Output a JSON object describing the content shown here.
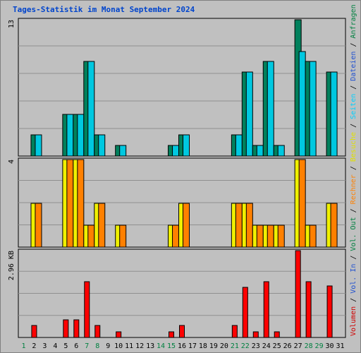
{
  "title": "Tages-Statistik im Monat September 2024",
  "colors": {
    "background": "#c0c0c0",
    "grid": "#909090",
    "border": "#000000",
    "anfragen": "#00805c",
    "dateien": "#00c8e0",
    "seiten": "#00e0ff",
    "besuche": "#f0f000",
    "rechner": "#ff8000",
    "volumen": "#ff0000",
    "title": "#0044cc",
    "weekday": "#000000",
    "weekend": "#008040"
  },
  "right_legend": [
    {
      "text": "Volumen",
      "color": "#d00000"
    },
    {
      "text": " / ",
      "color": "#000000"
    },
    {
      "text": "Vol. In",
      "color": "#2050d0"
    },
    {
      "text": " / ",
      "color": "#000000"
    },
    {
      "text": "Vol. Out",
      "color": "#008040"
    },
    {
      "text": " / ",
      "color": "#000000"
    },
    {
      "text": "Rechner",
      "color": "#ff8000"
    },
    {
      "text": " / ",
      "color": "#000000"
    },
    {
      "text": "Besuche",
      "color": "#e0e000"
    },
    {
      "text": " / ",
      "color": "#000000"
    },
    {
      "text": "Seiten",
      "color": "#00d0ff"
    },
    {
      "text": " / ",
      "color": "#000000"
    },
    {
      "text": "Dateien",
      "color": "#2050d0"
    },
    {
      "text": " / ",
      "color": "#000000"
    },
    {
      "text": "Anfragen",
      "color": "#008040"
    }
  ],
  "chart_data": [
    {
      "type": "bar",
      "panel": "hits",
      "ymax_label": "13",
      "ymax": 13,
      "categories": [
        "1",
        "2",
        "3",
        "4",
        "5",
        "6",
        "7",
        "8",
        "9",
        "10",
        "11",
        "12",
        "13",
        "14",
        "15",
        "16",
        "17",
        "18",
        "19",
        "20",
        "21",
        "22",
        "23",
        "24",
        "25",
        "26",
        "27",
        "28",
        "29",
        "30",
        "31"
      ],
      "series": [
        {
          "name": "Anfragen",
          "values": [
            0,
            2,
            0,
            0,
            4,
            4,
            9,
            2,
            0,
            1,
            0,
            0,
            0,
            0,
            1,
            2,
            0,
            0,
            0,
            0,
            2,
            8,
            1,
            9,
            1,
            0,
            13,
            9,
            0,
            8,
            0
          ]
        },
        {
          "name": "Dateien",
          "values": [
            0,
            2,
            0,
            0,
            4,
            4,
            9,
            2,
            0,
            1,
            0,
            0,
            0,
            0,
            1,
            2,
            0,
            0,
            0,
            0,
            2,
            8,
            1,
            9,
            1,
            0,
            10,
            9,
            0,
            8,
            0
          ]
        }
      ]
    },
    {
      "type": "bar",
      "panel": "visits",
      "ymax_label": "4",
      "ymax": 4,
      "categories": [
        "1",
        "2",
        "3",
        "4",
        "5",
        "6",
        "7",
        "8",
        "9",
        "10",
        "11",
        "12",
        "13",
        "14",
        "15",
        "16",
        "17",
        "18",
        "19",
        "20",
        "21",
        "22",
        "23",
        "24",
        "25",
        "26",
        "27",
        "28",
        "29",
        "30",
        "31"
      ],
      "series": [
        {
          "name": "Besuche",
          "values": [
            0,
            2,
            0,
            0,
            4,
            4,
            1,
            2,
            0,
            1,
            0,
            0,
            0,
            0,
            1,
            2,
            0,
            0,
            0,
            0,
            2,
            2,
            1,
            1,
            1,
            0,
            4,
            1,
            0,
            2,
            0
          ]
        },
        {
          "name": "Rechner",
          "values": [
            0,
            2,
            0,
            0,
            4,
            4,
            1,
            2,
            0,
            1,
            0,
            0,
            0,
            0,
            1,
            2,
            0,
            0,
            0,
            0,
            2,
            2,
            1,
            1,
            1,
            0,
            4,
            1,
            0,
            2,
            0
          ]
        }
      ]
    },
    {
      "type": "bar",
      "panel": "volume",
      "ymax_label": "2.96 KB",
      "ymax": 2.96,
      "unit": "KB",
      "categories": [
        "1",
        "2",
        "3",
        "4",
        "5",
        "6",
        "7",
        "8",
        "9",
        "10",
        "11",
        "12",
        "13",
        "14",
        "15",
        "16",
        "17",
        "18",
        "19",
        "20",
        "21",
        "22",
        "23",
        "24",
        "25",
        "26",
        "27",
        "28",
        "29",
        "30",
        "31"
      ],
      "series": [
        {
          "name": "Volumen",
          "values": [
            0,
            0.4,
            0,
            0,
            0.6,
            0.6,
            1.9,
            0.4,
            0,
            0.2,
            0,
            0,
            0,
            0,
            0.2,
            0.4,
            0,
            0,
            0,
            0,
            0.4,
            1.7,
            0.2,
            1.9,
            0.2,
            0,
            2.96,
            1.9,
            0,
            1.75,
            0
          ]
        }
      ]
    }
  ],
  "x_axis": {
    "days": [
      "1",
      "2",
      "3",
      "4",
      "5",
      "6",
      "7",
      "8",
      "9",
      "10",
      "11",
      "12",
      "13",
      "14",
      "15",
      "16",
      "17",
      "18",
      "19",
      "20",
      "21",
      "22",
      "23",
      "24",
      "25",
      "26",
      "27",
      "28",
      "29",
      "30",
      "31"
    ],
    "weekend_days": [
      "1",
      "7",
      "8",
      "14",
      "15",
      "21",
      "22",
      "28",
      "29"
    ]
  }
}
